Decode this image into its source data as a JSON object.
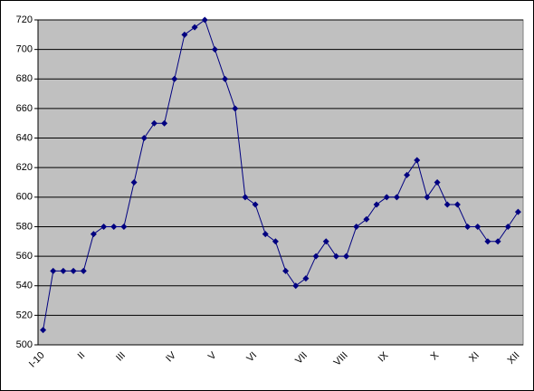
{
  "chart_data": {
    "type": "line",
    "categories": [
      "I-10",
      null,
      null,
      null,
      "II",
      null,
      null,
      null,
      "III",
      null,
      null,
      null,
      null,
      "IV",
      null,
      null,
      null,
      "V",
      null,
      null,
      null,
      "VI",
      null,
      null,
      null,
      null,
      "VII",
      null,
      null,
      null,
      "VIII",
      null,
      null,
      null,
      "IX",
      null,
      null,
      null,
      null,
      "X",
      null,
      null,
      null,
      "XI",
      null,
      null,
      null,
      "XII"
    ],
    "values": [
      510,
      550,
      550,
      550,
      550,
      575,
      580,
      580,
      580,
      610,
      640,
      650,
      650,
      680,
      710,
      715,
      720,
      700,
      680,
      660,
      600,
      595,
      575,
      570,
      550,
      540,
      545,
      560,
      570,
      560,
      560,
      580,
      585,
      595,
      600,
      600,
      615,
      625,
      600,
      610,
      595,
      595,
      580,
      580,
      570,
      570,
      580,
      590
    ],
    "color": "#000080",
    "ylim": [
      500,
      720
    ],
    "yticks": [
      500,
      520,
      540,
      560,
      580,
      600,
      620,
      640,
      660,
      680,
      700,
      720
    ],
    "grid": true
  }
}
